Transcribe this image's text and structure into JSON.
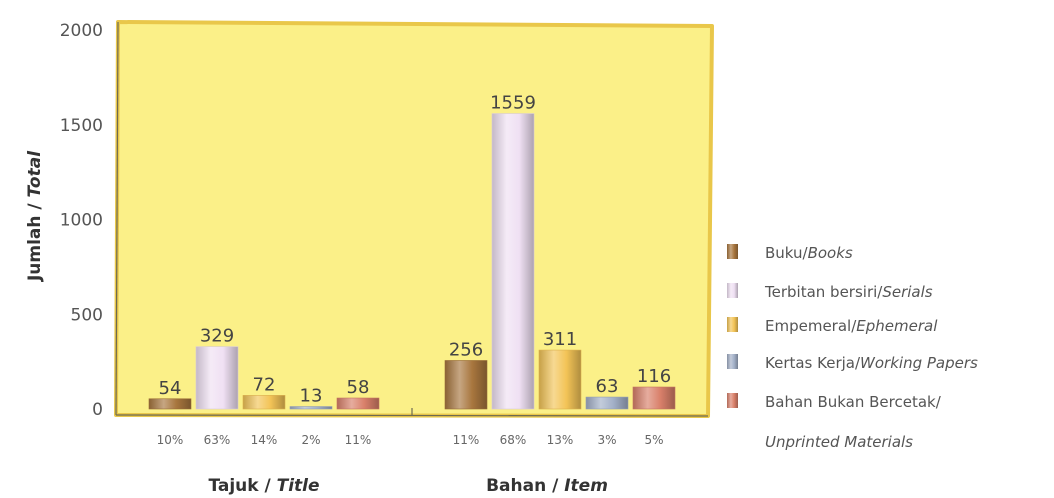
{
  "chart_data": {
    "type": "bar",
    "ylabel": {
      "main": "Jumlah",
      "sep": " / ",
      "en": "Total"
    },
    "ylim": [
      0,
      2000
    ],
    "yticks": [
      0,
      500,
      1000,
      1500,
      2000
    ],
    "grid": false,
    "legend_position": "right",
    "categories": [
      {
        "main": "Tajuk",
        "sep": " / ",
        "en": "Title"
      },
      {
        "main": "Bahan",
        "sep": " / ",
        "en": "Item"
      }
    ],
    "series": [
      {
        "name": "Buku/",
        "name_en": "Books",
        "values": [
          54,
          256
        ],
        "percents": [
          "10%",
          "11%"
        ],
        "color": "#a8763e"
      },
      {
        "name": "Terbitan bersiri/",
        "name_en": "Serials",
        "values": [
          329,
          1559
        ],
        "percents": [
          "63%",
          "68%"
        ],
        "color": "#efe0f3"
      },
      {
        "name": "Empemeral/",
        "name_en": "Ephemeral",
        "values": [
          72,
          311
        ],
        "percents": [
          "14%",
          "13%"
        ],
        "color": "#f3c457"
      },
      {
        "name": "Kertas Kerja/",
        "name_en": "Working Papers",
        "values": [
          13,
          63
        ],
        "percents": [
          "2%",
          "3%"
        ],
        "color": "#a3b0c8"
      },
      {
        "name": "Bahan Bukan Bercetak/",
        "name_en": "Unprinted Materials",
        "values": [
          58,
          116
        ],
        "percents": [
          "11%",
          "5%"
        ],
        "color": "#d9806a"
      }
    ],
    "colors": {
      "panel": "#fbf088",
      "panel_border": "#e9c74a",
      "background": "#ffffff"
    }
  }
}
